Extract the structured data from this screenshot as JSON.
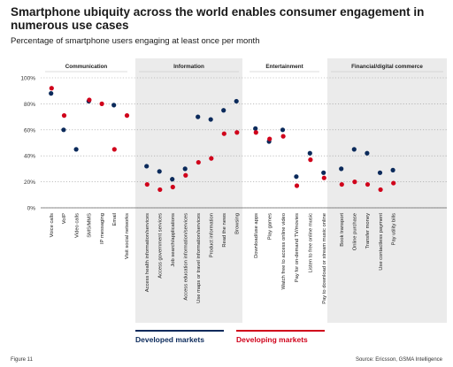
{
  "title": "Smartphone ubiquity across the world enables consumer engagement in numerous use cases",
  "subtitle": "Percentage of smartphone users engaging at least once per month",
  "footer_left": "Figure 11",
  "footer_right": "Source: Ericsson, GSMA Intelligence",
  "colors": {
    "developed": "#0b2a5b",
    "developing": "#d0021b",
    "panel": "#ebebeb"
  },
  "chart_data": {
    "type": "scatter",
    "ylim": [
      0,
      100
    ],
    "yticks": [
      "0%",
      "20%",
      "40%",
      "60%",
      "80%",
      "100%"
    ],
    "groups": [
      {
        "name": "Communication",
        "shaded": false,
        "categories": [
          "Voice calls",
          "VoIP",
          "Video calls",
          "SMS/MMS",
          "IP messaging",
          "Email",
          "Visit social networks"
        ]
      },
      {
        "name": "Information",
        "shaded": true,
        "categories": [
          "Access health information/services",
          "Access government services",
          "Job search/applications",
          "Access education information/services",
          "Use maps or travel information/services",
          "Product information",
          "Read the news",
          "Browsing"
        ]
      },
      {
        "name": "Entertainment",
        "shaded": false,
        "categories": [
          "Download/use apps",
          "Play games",
          "Watch free to access online video",
          "Pay for on-demand TV/movies",
          "Listen to free online music",
          "Pay to download or stream music online"
        ]
      },
      {
        "name": "Financial/digital commerce",
        "shaded": true,
        "categories": [
          "Book transport",
          "Online purchase",
          "Transfer money",
          "Use contactless payment",
          "Pay utility bills"
        ]
      }
    ],
    "series": [
      {
        "name": "Developed markets",
        "values": [
          88,
          60,
          45,
          82,
          null,
          79,
          null,
          32,
          28,
          22,
          30,
          70,
          68,
          75,
          82,
          61,
          51,
          60,
          24,
          42,
          27,
          30,
          45,
          42,
          27,
          29
        ]
      },
      {
        "name": "Developing markets",
        "values": [
          92,
          71,
          null,
          83,
          80,
          45,
          71,
          18,
          14,
          16,
          25,
          35,
          38,
          57,
          58,
          58,
          53,
          55,
          17,
          37,
          23,
          18,
          20,
          18,
          14,
          19
        ]
      }
    ]
  }
}
